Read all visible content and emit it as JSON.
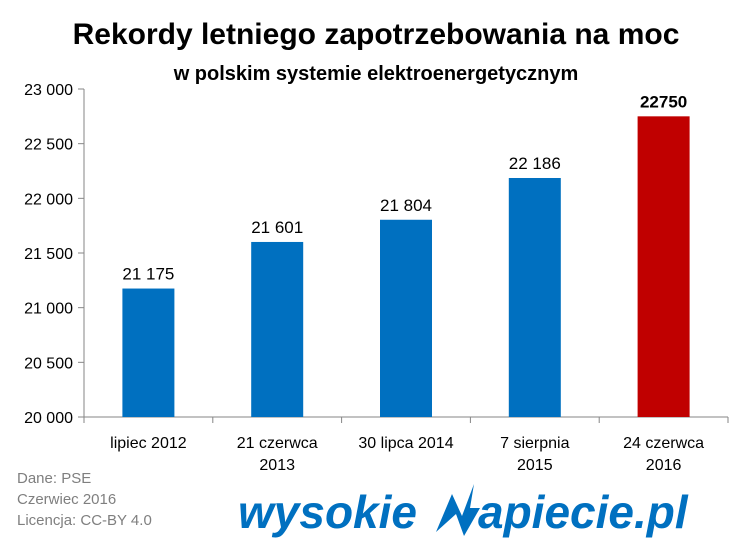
{
  "chart_data": {
    "type": "bar",
    "title": "Rekordy letniego zapotrzebowania na moc",
    "subtitle": "w polskim systemie elektroenergetycznym",
    "categories": [
      [
        "lipiec 2012"
      ],
      [
        "21 czerwca",
        "2013"
      ],
      [
        "30 lipca 2014"
      ],
      [
        "7 sierpnia",
        "2015"
      ],
      [
        "24 czerwca",
        "2016"
      ]
    ],
    "values": [
      21175,
      21601,
      21804,
      22186,
      22750
    ],
    "value_labels": [
      "21 175",
      "21 601",
      "21 804",
      "22 186",
      "22750"
    ],
    "bar_colors": [
      "#0070c0",
      "#0070c0",
      "#0070c0",
      "#0070c0",
      "#c00000"
    ],
    "highlight_index": 4,
    "ylim": [
      20000,
      23000
    ],
    "yticks": [
      20000,
      20500,
      21000,
      21500,
      22000,
      22500,
      23000
    ],
    "ytick_labels": [
      "20 000",
      "20 500",
      "21 000",
      "21 500",
      "22 000",
      "22 500",
      "23 000"
    ],
    "grid": false,
    "legend": "none",
    "xlabel": "",
    "ylabel": ""
  },
  "credits": {
    "source": "Dane: PSE",
    "date": "Czerwiec 2016",
    "license": "Licencja: CC-BY 4.0"
  },
  "logo": {
    "left_text": "wysokie",
    "right_text": "apiecie.pl",
    "color": "#0070c0"
  }
}
